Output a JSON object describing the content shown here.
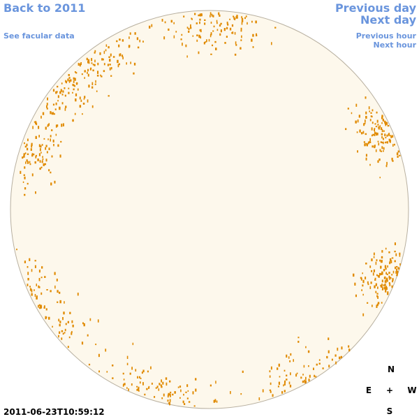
{
  "header": {
    "back": "Back to 2011",
    "facular": "See facular data"
  },
  "nav": {
    "previous_day": "Previous day",
    "next_day": "Next day",
    "previous_hour": "Previous hour",
    "next_hour": "Next hour"
  },
  "compass": {
    "north": "N",
    "east": "E",
    "center": "+",
    "west": "W",
    "south": "S"
  },
  "timestamp": "2011-06-23T10:59:12"
}
